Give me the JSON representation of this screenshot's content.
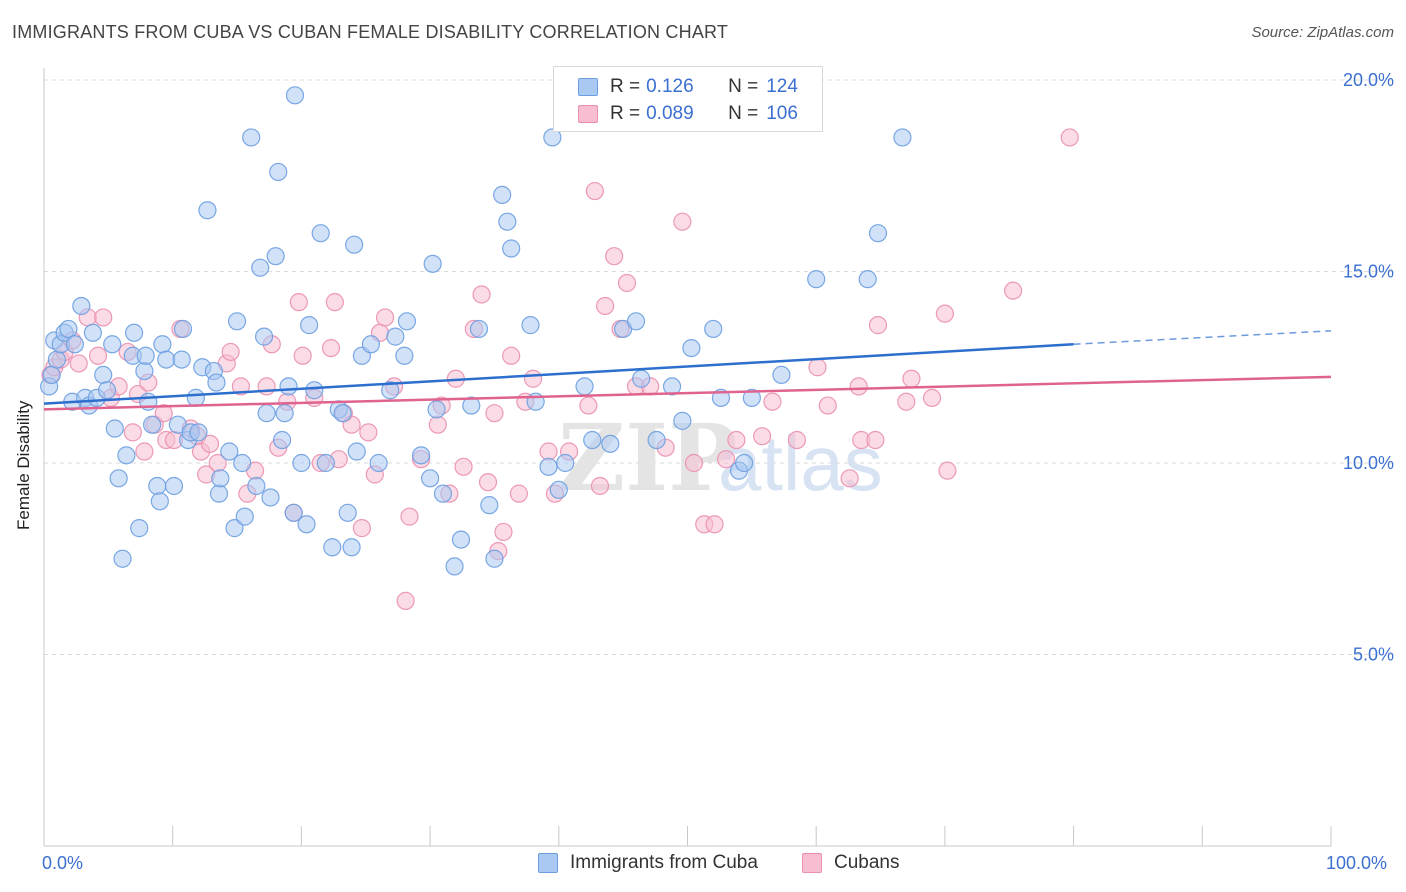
{
  "title": "IMMIGRANTS FROM CUBA VS CUBAN FEMALE DISABILITY CORRELATION CHART",
  "source": "Source: ZipAtlas.com",
  "watermark": {
    "zip": "ZIP",
    "atlas": "atlas"
  },
  "legend": {
    "r_label": "R =",
    "n_label": "N =",
    "series": [
      {
        "r": "0.126",
        "n": "124"
      },
      {
        "r": "0.089",
        "n": "106"
      }
    ]
  },
  "colors": {
    "blue_fill": "#a9c8f2",
    "blue_stroke": "#6c9ee0",
    "blue_line": "#2d6fce",
    "pink_fill": "#f7bdd0",
    "pink_stroke": "#ea8fb0",
    "pink_line": "#e0638f",
    "tick_label": "#3b6fd0",
    "grid": "#d9d9d9"
  },
  "chart_data": {
    "type": "scatter",
    "title": "IMMIGRANTS FROM CUBA VS CUBAN FEMALE DISABILITY CORRELATION CHART",
    "xlabel": "",
    "ylabel": "Female Disability",
    "xlim": [
      0,
      100
    ],
    "ylim": [
      0,
      21
    ],
    "x_tick_labels": [
      "0.0%",
      "100.0%"
    ],
    "y_ticks": [
      5,
      10,
      15,
      20
    ],
    "y_tick_labels": [
      "5.0%",
      "10.0%",
      "15.0%",
      "20.0%"
    ],
    "grid": "horizontal dashed",
    "legend_placement": "top-center, bottom",
    "series": [
      {
        "name": "Immigrants from Cuba",
        "r": 0.126,
        "n": 124,
        "trend": {
          "x": [
            0,
            80
          ],
          "y": [
            11.55,
            13.1
          ],
          "dashed_extension_to_x": 100,
          "dashed_end_y": 13.45
        },
        "points": [
          [
            0.4,
            12.0
          ],
          [
            0.6,
            12.3
          ],
          [
            0.8,
            13.2
          ],
          [
            1.0,
            12.7
          ],
          [
            1.3,
            13.1
          ],
          [
            1.6,
            13.4
          ],
          [
            1.9,
            13.5
          ],
          [
            2.2,
            11.6
          ],
          [
            2.4,
            13.1
          ],
          [
            2.9,
            14.1
          ],
          [
            3.2,
            11.7
          ],
          [
            3.5,
            11.5
          ],
          [
            3.8,
            13.4
          ],
          [
            4.1,
            11.7
          ],
          [
            4.6,
            12.3
          ],
          [
            4.9,
            11.9
          ],
          [
            5.3,
            13.1
          ],
          [
            5.5,
            10.9
          ],
          [
            5.8,
            9.6
          ],
          [
            6.1,
            7.5
          ],
          [
            6.4,
            10.2
          ],
          [
            6.9,
            12.8
          ],
          [
            7.0,
            13.4
          ],
          [
            7.4,
            8.3
          ],
          [
            7.8,
            12.4
          ],
          [
            7.9,
            12.8
          ],
          [
            8.1,
            11.6
          ],
          [
            8.4,
            11.0
          ],
          [
            8.8,
            9.4
          ],
          [
            9.0,
            9.0
          ],
          [
            9.2,
            13.1
          ],
          [
            9.5,
            12.7
          ],
          [
            10.1,
            9.4
          ],
          [
            10.4,
            11.0
          ],
          [
            10.7,
            12.7
          ],
          [
            10.8,
            13.5
          ],
          [
            11.2,
            10.6
          ],
          [
            11.4,
            10.8
          ],
          [
            11.8,
            11.7
          ],
          [
            12.0,
            10.8
          ],
          [
            12.3,
            12.5
          ],
          [
            12.7,
            16.6
          ],
          [
            13.2,
            12.4
          ],
          [
            13.4,
            12.1
          ],
          [
            13.6,
            9.2
          ],
          [
            13.7,
            9.6
          ],
          [
            14.4,
            10.3
          ],
          [
            14.8,
            8.3
          ],
          [
            15.0,
            13.7
          ],
          [
            15.4,
            10.0
          ],
          [
            15.6,
            8.6
          ],
          [
            16.1,
            18.5
          ],
          [
            16.5,
            9.4
          ],
          [
            16.8,
            15.1
          ],
          [
            17.1,
            13.3
          ],
          [
            17.3,
            11.3
          ],
          [
            17.6,
            9.1
          ],
          [
            18.0,
            15.4
          ],
          [
            18.2,
            17.6
          ],
          [
            18.5,
            10.6
          ],
          [
            18.7,
            11.3
          ],
          [
            19.0,
            12.0
          ],
          [
            19.4,
            8.7
          ],
          [
            19.5,
            19.6
          ],
          [
            20.0,
            10.0
          ],
          [
            20.4,
            8.4
          ],
          [
            20.6,
            13.6
          ],
          [
            21.0,
            11.9
          ],
          [
            21.5,
            16.0
          ],
          [
            21.9,
            10.0
          ],
          [
            22.4,
            7.8
          ],
          [
            22.9,
            11.4
          ],
          [
            23.2,
            11.3
          ],
          [
            23.6,
            8.7
          ],
          [
            23.9,
            7.8
          ],
          [
            24.1,
            15.7
          ],
          [
            24.3,
            10.3
          ],
          [
            24.7,
            12.8
          ],
          [
            25.4,
            13.1
          ],
          [
            26.0,
            10.0
          ],
          [
            26.9,
            11.9
          ],
          [
            27.3,
            13.3
          ],
          [
            28.0,
            12.8
          ],
          [
            28.2,
            13.7
          ],
          [
            29.3,
            10.2
          ],
          [
            30.0,
            9.6
          ],
          [
            30.2,
            15.2
          ],
          [
            30.5,
            11.4
          ],
          [
            31.0,
            9.2
          ],
          [
            31.9,
            7.3
          ],
          [
            32.4,
            8.0
          ],
          [
            33.2,
            11.5
          ],
          [
            33.8,
            13.5
          ],
          [
            34.6,
            8.9
          ],
          [
            35.0,
            7.5
          ],
          [
            35.6,
            17.0
          ],
          [
            36.0,
            16.3
          ],
          [
            36.3,
            15.6
          ],
          [
            37.8,
            13.6
          ],
          [
            38.2,
            11.6
          ],
          [
            39.2,
            9.9
          ],
          [
            39.5,
            18.5
          ],
          [
            40.0,
            9.3
          ],
          [
            40.5,
            10.0
          ],
          [
            42.0,
            12.0
          ],
          [
            42.6,
            10.6
          ],
          [
            44.0,
            10.5
          ],
          [
            45.0,
            13.5
          ],
          [
            46.0,
            13.7
          ],
          [
            46.4,
            12.2
          ],
          [
            47.6,
            10.6
          ],
          [
            48.8,
            12.0
          ],
          [
            49.6,
            11.1
          ],
          [
            50.3,
            13.0
          ],
          [
            52.0,
            13.5
          ],
          [
            52.6,
            11.7
          ],
          [
            54.0,
            9.8
          ],
          [
            54.4,
            10.0
          ],
          [
            55.0,
            11.7
          ],
          [
            57.3,
            12.3
          ],
          [
            60.0,
            14.8
          ],
          [
            64.0,
            14.8
          ],
          [
            64.8,
            16.0
          ],
          [
            66.7,
            18.5
          ]
        ]
      },
      {
        "name": "Cubans",
        "r": 0.089,
        "n": 106,
        "trend": {
          "x": [
            0,
            100
          ],
          "y": [
            11.4,
            12.25
          ]
        },
        "points": [
          [
            0.5,
            12.3
          ],
          [
            0.8,
            12.5
          ],
          [
            1.3,
            12.7
          ],
          [
            1.6,
            12.9
          ],
          [
            2.2,
            13.2
          ],
          [
            2.7,
            12.6
          ],
          [
            3.4,
            13.8
          ],
          [
            4.2,
            12.8
          ],
          [
            4.6,
            13.8
          ],
          [
            5.2,
            11.7
          ],
          [
            5.8,
            12.0
          ],
          [
            6.5,
            12.9
          ],
          [
            6.9,
            10.8
          ],
          [
            7.3,
            11.8
          ],
          [
            7.8,
            10.3
          ],
          [
            8.1,
            12.1
          ],
          [
            8.6,
            11.0
          ],
          [
            9.3,
            11.3
          ],
          [
            9.5,
            10.6
          ],
          [
            10.1,
            10.6
          ],
          [
            10.6,
            13.5
          ],
          [
            11.4,
            10.9
          ],
          [
            11.9,
            10.7
          ],
          [
            12.2,
            10.3
          ],
          [
            12.6,
            9.7
          ],
          [
            12.9,
            10.5
          ],
          [
            13.5,
            10.0
          ],
          [
            14.2,
            12.6
          ],
          [
            14.5,
            12.9
          ],
          [
            15.3,
            12.0
          ],
          [
            15.8,
            9.2
          ],
          [
            16.4,
            9.8
          ],
          [
            17.3,
            12.0
          ],
          [
            17.7,
            13.1
          ],
          [
            18.2,
            10.4
          ],
          [
            18.9,
            11.6
          ],
          [
            19.4,
            8.7
          ],
          [
            19.8,
            14.2
          ],
          [
            20.1,
            12.8
          ],
          [
            21.0,
            11.7
          ],
          [
            21.5,
            10.0
          ],
          [
            22.3,
            13.0
          ],
          [
            22.6,
            14.2
          ],
          [
            22.9,
            10.1
          ],
          [
            23.3,
            11.3
          ],
          [
            23.9,
            11.0
          ],
          [
            24.7,
            8.3
          ],
          [
            25.2,
            10.8
          ],
          [
            25.7,
            9.7
          ],
          [
            26.1,
            13.4
          ],
          [
            26.5,
            13.8
          ],
          [
            27.2,
            12.0
          ],
          [
            28.1,
            6.4
          ],
          [
            28.4,
            8.6
          ],
          [
            29.3,
            10.1
          ],
          [
            30.6,
            11.0
          ],
          [
            30.9,
            11.5
          ],
          [
            31.5,
            9.2
          ],
          [
            32.0,
            12.2
          ],
          [
            32.6,
            9.9
          ],
          [
            33.4,
            13.5
          ],
          [
            34.0,
            14.4
          ],
          [
            34.5,
            9.5
          ],
          [
            35.0,
            11.3
          ],
          [
            35.3,
            7.7
          ],
          [
            35.7,
            8.2
          ],
          [
            36.3,
            12.8
          ],
          [
            36.9,
            9.2
          ],
          [
            37.4,
            11.6
          ],
          [
            38.0,
            12.2
          ],
          [
            39.2,
            10.3
          ],
          [
            39.7,
            9.2
          ],
          [
            40.8,
            10.3
          ],
          [
            42.3,
            11.5
          ],
          [
            42.8,
            17.1
          ],
          [
            43.2,
            9.4
          ],
          [
            43.6,
            14.1
          ],
          [
            44.3,
            15.4
          ],
          [
            44.8,
            13.5
          ],
          [
            45.3,
            14.7
          ],
          [
            46.0,
            12.0
          ],
          [
            47.1,
            12.0
          ],
          [
            48.3,
            10.4
          ],
          [
            49.6,
            16.3
          ],
          [
            50.5,
            10.0
          ],
          [
            51.3,
            8.4
          ],
          [
            52.1,
            8.4
          ],
          [
            53.0,
            10.1
          ],
          [
            53.8,
            10.6
          ],
          [
            55.8,
            10.7
          ],
          [
            56.6,
            11.6
          ],
          [
            58.5,
            10.6
          ],
          [
            60.1,
            12.5
          ],
          [
            60.9,
            11.5
          ],
          [
            62.6,
            9.6
          ],
          [
            63.3,
            12.0
          ],
          [
            63.5,
            10.6
          ],
          [
            64.6,
            10.6
          ],
          [
            64.8,
            13.6
          ],
          [
            67.0,
            11.6
          ],
          [
            67.4,
            12.2
          ],
          [
            69.0,
            11.7
          ],
          [
            70.0,
            13.9
          ],
          [
            70.2,
            9.8
          ],
          [
            75.3,
            14.5
          ],
          [
            79.7,
            18.5
          ]
        ]
      }
    ]
  },
  "axis": {
    "y_title": "Female Disability",
    "x_left_label": "0.0%",
    "x_right_label": "100.0%"
  },
  "bottom_legend": [
    {
      "label": "Immigrants from Cuba"
    },
    {
      "label": "Cubans"
    }
  ]
}
